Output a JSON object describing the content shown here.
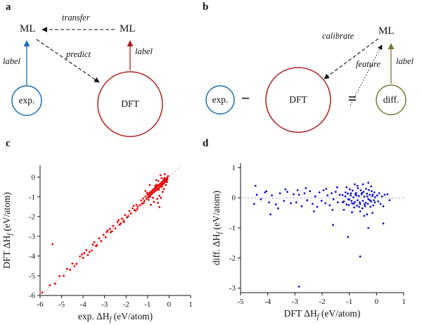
{
  "panels": {
    "a": {
      "tag": "a",
      "ml_left": "ML",
      "ml_right": "ML",
      "transfer": "transfer",
      "predict": "predict",
      "label_exp": "label",
      "label_dft": "label",
      "exp": "exp.",
      "dft": "DFT"
    },
    "b": {
      "tag": "b",
      "ml": "ML",
      "calibrate": "calibrate",
      "feature": "feature",
      "label_diff": "label",
      "exp": "exp.",
      "dft": "DFT",
      "diff": "diff.",
      "minus": "−",
      "equals": "="
    },
    "c": {
      "tag": "c"
    },
    "d": {
      "tag": "d"
    }
  },
  "colors": {
    "exp_blue": "#1c6fad",
    "dft_red": "#b02020",
    "diff_olive": "#7a7a33",
    "arrow_black": "#111111",
    "scatter_red": "#e60000",
    "scatter_blue": "#1010d0",
    "ref_red": "#cc9999",
    "ref_blue": "#9999cc"
  },
  "chart_data": [
    {
      "id": "c",
      "type": "scatter",
      "title": "",
      "xlabel": {
        "pre": "exp. ΔH",
        "sub": "f",
        "post": " (eV/atom)"
      },
      "ylabel": {
        "pre": "DFT ΔH",
        "sub": "f",
        "post": " (eV/atom)"
      },
      "xlim": [
        -6,
        1
      ],
      "ylim": [
        -6,
        0.6
      ],
      "xticks": [
        -6,
        -5,
        -4,
        -3,
        -2,
        -1,
        0,
        1
      ],
      "yticks": [
        0,
        -1,
        -2,
        -3,
        -4,
        -5,
        -6
      ],
      "grid": false,
      "legend": false,
      "refline": "diagonal",
      "refline_color": "#cc9999",
      "point_color": "#e60000",
      "points": [
        [
          -0.08,
          -0.12
        ],
        [
          -0.1,
          -0.03
        ],
        [
          -0.12,
          -0.18
        ],
        [
          -0.15,
          -0.1
        ],
        [
          -0.17,
          -0.22
        ],
        [
          -0.2,
          -0.15
        ],
        [
          -0.22,
          -0.28
        ],
        [
          -0.24,
          -0.12
        ],
        [
          -0.26,
          -0.33
        ],
        [
          -0.28,
          -0.2
        ],
        [
          -0.3,
          -0.36
        ],
        [
          -0.32,
          -0.25
        ],
        [
          -0.34,
          -0.41
        ],
        [
          -0.36,
          -0.28
        ],
        [
          -0.38,
          -0.45
        ],
        [
          -0.4,
          -0.33
        ],
        [
          -0.42,
          -0.5
        ],
        [
          -0.44,
          -0.36
        ],
        [
          -0.46,
          -0.53
        ],
        [
          -0.48,
          -0.4
        ],
        [
          -0.5,
          -0.57
        ],
        [
          -0.52,
          -0.44
        ],
        [
          -0.54,
          -0.6
        ],
        [
          -0.56,
          -0.47
        ],
        [
          -0.58,
          -0.64
        ],
        [
          -0.6,
          -0.51
        ],
        [
          -0.62,
          -0.67
        ],
        [
          -0.64,
          -0.55
        ],
        [
          -0.66,
          -0.71
        ],
        [
          -0.68,
          -0.58
        ],
        [
          -0.7,
          -0.75
        ],
        [
          -0.72,
          -0.62
        ],
        [
          -0.74,
          -0.78
        ],
        [
          -0.76,
          -0.66
        ],
        [
          -0.78,
          -0.82
        ],
        [
          -0.8,
          -0.7
        ],
        [
          -0.82,
          -0.86
        ],
        [
          -0.84,
          -0.74
        ],
        [
          -0.86,
          -0.9
        ],
        [
          -0.88,
          -0.78
        ],
        [
          -0.9,
          -0.95
        ],
        [
          -0.92,
          -0.82
        ],
        [
          -0.94,
          -0.99
        ],
        [
          -0.96,
          -0.86
        ],
        [
          -0.98,
          -1.03
        ],
        [
          -1.0,
          -0.9
        ],
        [
          -1.05,
          -1.1
        ],
        [
          -1.1,
          -0.98
        ],
        [
          -1.15,
          -1.2
        ],
        [
          -1.2,
          -1.08
        ],
        [
          -0.3,
          -0.75
        ],
        [
          -0.45,
          -0.95
        ],
        [
          -0.55,
          -1.1
        ],
        [
          -0.25,
          -0.6
        ],
        [
          -0.7,
          -1.25
        ],
        [
          -0.85,
          -1.4
        ],
        [
          -0.4,
          0.1
        ],
        [
          -0.2,
          0.15
        ],
        [
          -0.6,
          -0.15
        ],
        [
          -0.9,
          -0.4
        ],
        [
          -1.1,
          -0.7
        ],
        [
          -0.35,
          -0.05
        ],
        [
          -0.15,
          -0.4
        ],
        [
          -0.5,
          -0.2
        ],
        [
          -0.75,
          -1.05
        ],
        [
          -1.25,
          -1.35
        ],
        [
          -1.3,
          -1.18
        ],
        [
          -1.35,
          -1.42
        ],
        [
          -0.1,
          -0.25
        ],
        [
          -0.65,
          -0.45
        ],
        [
          -0.95,
          -1.15
        ],
        [
          -1.02,
          -0.8
        ],
        [
          -0.22,
          -0.05
        ],
        [
          -0.48,
          -0.65
        ],
        [
          -0.88,
          -1.0
        ],
        [
          -0.33,
          -0.48
        ],
        [
          -0.58,
          -0.38
        ],
        [
          -1.18,
          -1.3
        ],
        [
          -0.05,
          0.05
        ],
        [
          -0.27,
          -0.18
        ],
        [
          -0.52,
          -1.3
        ],
        [
          -0.38,
          -1.05
        ],
        [
          -0.45,
          -1.52
        ],
        [
          -1.45,
          -1.5
        ],
        [
          -1.52,
          -1.4
        ],
        [
          -1.6,
          -1.68
        ],
        [
          -1.7,
          -1.58
        ],
        [
          -1.78,
          -1.85
        ],
        [
          -1.85,
          -1.72
        ],
        [
          -1.95,
          -2.05
        ],
        [
          -2.05,
          -1.92
        ],
        [
          -2.12,
          -2.2
        ],
        [
          -2.2,
          -2.1
        ],
        [
          -2.3,
          -2.42
        ],
        [
          -2.4,
          -2.28
        ],
        [
          -2.5,
          -2.6
        ],
        [
          -2.6,
          -2.48
        ],
        [
          -2.72,
          -2.8
        ],
        [
          -2.85,
          -2.7
        ],
        [
          -2.95,
          -3.05
        ],
        [
          -3.05,
          -2.92
        ],
        [
          -1.48,
          -1.62
        ],
        [
          -1.65,
          -1.45
        ],
        [
          -1.9,
          -1.98
        ],
        [
          -2.1,
          -2.28
        ],
        [
          -2.35,
          -2.18
        ],
        [
          -2.65,
          -2.75
        ],
        [
          -2.9,
          -2.78
        ],
        [
          -1.55,
          -1.7
        ],
        [
          -2.25,
          -2.35
        ],
        [
          -2.75,
          -2.62
        ],
        [
          -3.15,
          -3.25
        ],
        [
          -3.25,
          -3.1
        ],
        [
          -3.4,
          -3.5
        ],
        [
          -3.55,
          -3.42
        ],
        [
          -3.7,
          -3.8
        ],
        [
          -3.85,
          -3.7
        ],
        [
          -4.0,
          -4.1
        ],
        [
          -4.15,
          -4.02
        ],
        [
          -4.3,
          -4.4
        ],
        [
          -4.5,
          -4.38
        ],
        [
          -3.35,
          -3.45
        ],
        [
          -3.6,
          -3.72
        ],
        [
          -3.95,
          -3.85
        ],
        [
          -4.4,
          -4.52
        ],
        [
          -4.6,
          -4.7
        ],
        [
          -4.75,
          -4.65
        ],
        [
          -4.9,
          -5.0
        ],
        [
          -5.1,
          -5.02
        ],
        [
          -5.3,
          -5.4
        ],
        [
          -5.55,
          -5.48
        ],
        [
          -5.9,
          -5.85
        ],
        [
          -5.42,
          -3.4
        ],
        [
          -3.48,
          -3.3
        ],
        [
          -3.78,
          -3.95
        ],
        [
          -4.05,
          -3.92
        ]
      ]
    },
    {
      "id": "d",
      "type": "scatter",
      "title": "",
      "xlabel": {
        "pre": "DFT ΔH",
        "sub": "f",
        "post": " (eV/atom)"
      },
      "ylabel": {
        "pre": "diff. ΔH",
        "sub": "f",
        "post": " (eV/atom)"
      },
      "xlim": [
        -5,
        1
      ],
      "ylim": [
        -3.15,
        1.15
      ],
      "xticks": [
        -5,
        -4,
        -3,
        -2,
        -1,
        0,
        1
      ],
      "yticks": [
        1,
        0,
        -1,
        -2,
        -3
      ],
      "grid": false,
      "legend": false,
      "refline": "zero",
      "refline_color": "#9999cc",
      "point_color": "#1010d0",
      "points": [
        [
          -0.05,
          0.02
        ],
        [
          -0.1,
          -0.08
        ],
        [
          -0.15,
          0.06
        ],
        [
          -0.2,
          -0.12
        ],
        [
          -0.25,
          0.1
        ],
        [
          -0.3,
          -0.05
        ],
        [
          -0.35,
          0.14
        ],
        [
          -0.4,
          -0.16
        ],
        [
          -0.45,
          0.04
        ],
        [
          -0.5,
          -0.1
        ],
        [
          -0.55,
          0.12
        ],
        [
          -0.6,
          -0.2
        ],
        [
          -0.65,
          0.06
        ],
        [
          -0.7,
          -0.08
        ],
        [
          -0.75,
          0.16
        ],
        [
          -0.8,
          -0.14
        ],
        [
          -0.85,
          0.02
        ],
        [
          -0.9,
          -0.18
        ],
        [
          -0.95,
          0.08
        ],
        [
          -1.0,
          -0.06
        ],
        [
          -1.05,
          0.14
        ],
        [
          -1.1,
          -0.22
        ],
        [
          -1.15,
          0.05
        ],
        [
          -1.2,
          -0.12
        ],
        [
          -1.25,
          0.09
        ],
        [
          -0.08,
          0.18
        ],
        [
          -0.12,
          -0.25
        ],
        [
          -0.18,
          0.22
        ],
        [
          -0.22,
          -0.3
        ],
        [
          -0.28,
          0.26
        ],
        [
          -0.32,
          -0.2
        ],
        [
          -0.38,
          0.3
        ],
        [
          -0.42,
          -0.28
        ],
        [
          -0.48,
          0.2
        ],
        [
          -0.52,
          -0.35
        ],
        [
          -0.58,
          0.25
        ],
        [
          -0.62,
          -0.15
        ],
        [
          -0.68,
          0.32
        ],
        [
          -0.72,
          -0.26
        ],
        [
          -0.78,
          0.12
        ],
        [
          -0.82,
          -0.32
        ],
        [
          -0.88,
          0.24
        ],
        [
          -0.92,
          -0.1
        ],
        [
          -0.98,
          0.28
        ],
        [
          -1.02,
          -0.24
        ],
        [
          -0.06,
          -0.15
        ],
        [
          -0.14,
          0.1
        ],
        [
          -0.24,
          -0.08
        ],
        [
          -0.34,
          0.05
        ],
        [
          -0.44,
          -0.22
        ],
        [
          -0.54,
          0.16
        ],
        [
          -0.64,
          -0.3
        ],
        [
          -0.74,
          0.08
        ],
        [
          -0.84,
          -0.2
        ],
        [
          -0.94,
          0.15
        ],
        [
          -1.04,
          -0.05
        ],
        [
          -1.14,
          0.18
        ],
        [
          -1.24,
          -0.15
        ],
        [
          0.02,
          0.08
        ],
        [
          0.06,
          -0.12
        ],
        [
          0.1,
          0.15
        ],
        [
          0.15,
          -0.2
        ],
        [
          0.2,
          0.05
        ],
        [
          0.25,
          -0.28
        ],
        [
          0.3,
          0.1
        ],
        [
          0.4,
          0.12
        ],
        [
          0.48,
          -0.08
        ],
        [
          -0.5,
          0.45
        ],
        [
          -0.35,
          -0.55
        ],
        [
          -0.7,
          0.4
        ],
        [
          -0.9,
          -0.48
        ],
        [
          -0.2,
          0.38
        ],
        [
          -1.1,
          0.35
        ],
        [
          -0.6,
          -0.45
        ],
        [
          -0.15,
          -0.5
        ],
        [
          -0.8,
          0.45
        ],
        [
          -0.45,
          -0.6
        ],
        [
          -1.2,
          -0.4
        ],
        [
          -0.3,
          0.5
        ],
        [
          -1.35,
          0.1
        ],
        [
          -1.42,
          -0.15
        ],
        [
          -1.5,
          0.2
        ],
        [
          -1.58,
          -0.05
        ],
        [
          -1.65,
          0.15
        ],
        [
          -1.72,
          -0.25
        ],
        [
          -1.8,
          0.08
        ],
        [
          -1.88,
          -0.18
        ],
        [
          -1.95,
          0.25
        ],
        [
          -2.02,
          -0.1
        ],
        [
          -2.1,
          0.18
        ],
        [
          -2.18,
          -0.3
        ],
        [
          -2.25,
          0.05
        ],
        [
          -2.35,
          -0.2
        ],
        [
          -2.45,
          0.22
        ],
        [
          -2.55,
          -0.08
        ],
        [
          -2.65,
          0.15
        ],
        [
          -2.75,
          -0.28
        ],
        [
          -2.85,
          0.1
        ],
        [
          -2.95,
          -0.15
        ],
        [
          -1.45,
          0.35
        ],
        [
          -1.62,
          -0.4
        ],
        [
          -1.85,
          0.3
        ],
        [
          -2.3,
          -0.45
        ],
        [
          -2.6,
          0.32
        ],
        [
          -2.9,
          0.25
        ],
        [
          -3.05,
          0.12
        ],
        [
          -3.15,
          -0.18
        ],
        [
          -3.28,
          0.2
        ],
        [
          -3.4,
          -0.1
        ],
        [
          -3.55,
          0.15
        ],
        [
          -3.7,
          -0.22
        ],
        [
          -3.85,
          0.08
        ],
        [
          -3.95,
          -0.15
        ],
        [
          -4.1,
          0.18
        ],
        [
          -4.25,
          -0.05
        ],
        [
          -4.4,
          0.1
        ],
        [
          -4.5,
          -0.2
        ],
        [
          -3.35,
          0.28
        ],
        [
          -3.62,
          -0.35
        ],
        [
          -4.05,
          0.22
        ],
        [
          -2.85,
          -2.95
        ],
        [
          -0.6,
          -1.95
        ],
        [
          -1.05,
          -1.3
        ],
        [
          -0.3,
          -1.0
        ],
        [
          0.25,
          -0.85
        ],
        [
          -1.6,
          -0.9
        ],
        [
          -3.9,
          -0.55
        ],
        [
          -4.45,
          0.4
        ]
      ]
    }
  ]
}
